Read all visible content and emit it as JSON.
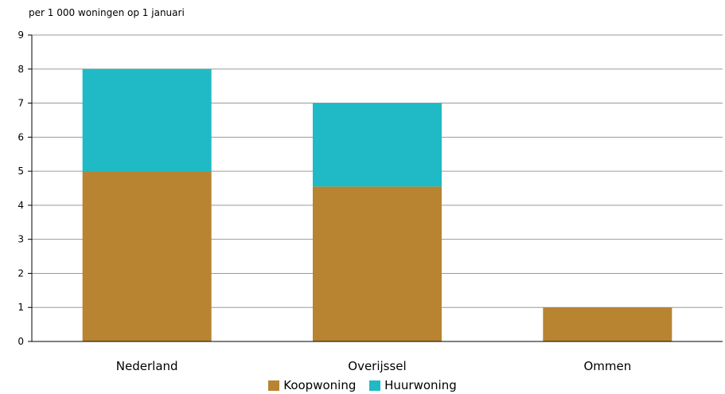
{
  "chart_data": {
    "type": "bar",
    "stacked": true,
    "unit_label": "per 1 000 woningen op 1 januari",
    "categories": [
      "Nederland",
      "Overijssel",
      "Ommen"
    ],
    "series": [
      {
        "name": "Koopwoning",
        "color": "#b88431",
        "values": [
          5.0,
          4.55,
          1.0
        ]
      },
      {
        "name": "Huurwoning",
        "color": "#1fbac6",
        "values": [
          3.0,
          2.45,
          0.0
        ]
      }
    ],
    "ylim": [
      0,
      9
    ],
    "yticks": [
      "0",
      "1",
      "2",
      "3",
      "4",
      "5",
      "6",
      "7",
      "8",
      "9"
    ],
    "grid": true,
    "legend_position": "bottom"
  }
}
